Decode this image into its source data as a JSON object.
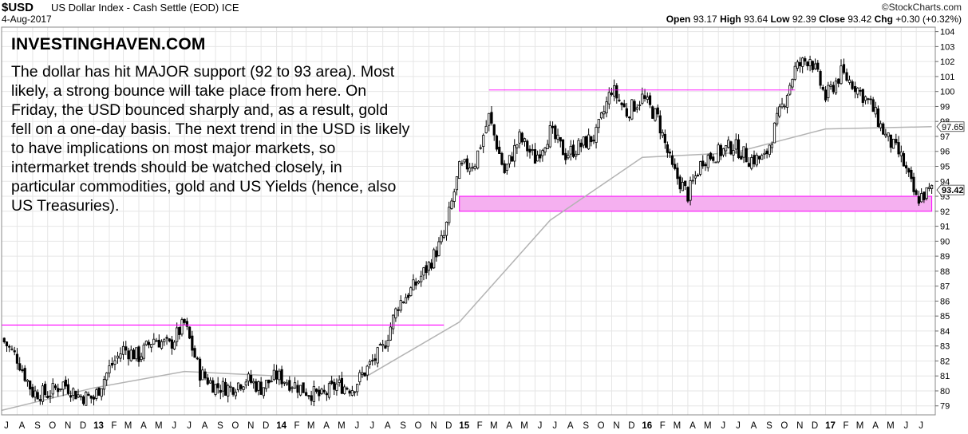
{
  "header": {
    "symbol": "$USD",
    "name": "US Dollar Index - Cash Settle (EOD)",
    "exchange": "ICE",
    "date": "4-Aug-2017",
    "copyright": "©StockCharts.com",
    "open_label": "Open",
    "open": "93.17",
    "high_label": "High",
    "high": "93.64",
    "low_label": "Low",
    "low": "92.39",
    "close_label": "Close",
    "close": "93.42",
    "chg_label": "Chg",
    "chg": "+0.30 (+0.32%)"
  },
  "annotation": {
    "brand": "INVESTINGHAVEN.COM",
    "text": "The dollar has hit MAJOR support (92 to 93 area). Most likely, a strong bounce will take place from here. On Friday, the USD bounced sharply and, as a result, gold fell on a one-day basis. The next trend in the USD is likely to have implications on most major markets, so intermarket trends should be watched closely, in particular commodities, gold and US Yields (hence, also US Treasuries)."
  },
  "colors": {
    "candles": "#000000",
    "ma": "#b3b3b3",
    "resistance": "#ff00ff",
    "support_zone": "#f5b0f0",
    "grid": "#e6e6e6"
  },
  "chart_data": {
    "type": "line",
    "title": "$USD US Dollar Index - Cash Settle (EOD)",
    "ylim": [
      78.4,
      104.3
    ],
    "y_ticks": [
      79,
      80,
      81,
      82,
      83,
      84,
      85,
      86,
      87,
      88,
      89,
      90,
      91,
      92,
      93,
      94,
      95,
      96,
      97,
      98,
      99,
      100,
      101,
      102,
      103,
      104
    ],
    "x_ticks": [
      "J",
      "A",
      "S",
      "O",
      "N",
      "D",
      "13",
      "F",
      "M",
      "A",
      "M",
      "J",
      "J",
      "A",
      "S",
      "O",
      "N",
      "D",
      "14",
      "F",
      "M",
      "A",
      "M",
      "J",
      "J",
      "A",
      "S",
      "O",
      "N",
      "D",
      "15",
      "F",
      "M",
      "A",
      "M",
      "J",
      "J",
      "A",
      "S",
      "O",
      "N",
      "D",
      "16",
      "F",
      "M",
      "A",
      "M",
      "J",
      "J",
      "A",
      "S",
      "O",
      "N",
      "D",
      "17",
      "F",
      "M",
      "A",
      "M",
      "J",
      "J"
    ],
    "x_range": [
      "2012-07",
      "2017-08"
    ],
    "series": [
      {
        "name": "Close",
        "x": [
          "2012-07",
          "2012-08",
          "2012-09",
          "2012-10",
          "2012-11",
          "2012-12",
          "2013-01",
          "2013-02",
          "2013-03",
          "2013-04",
          "2013-05",
          "2013-06",
          "2013-07",
          "2013-08",
          "2013-09",
          "2013-10",
          "2013-11",
          "2013-12",
          "2014-01",
          "2014-02",
          "2014-03",
          "2014-04",
          "2014-05",
          "2014-06",
          "2014-07",
          "2014-08",
          "2014-09",
          "2014-10",
          "2014-11",
          "2014-12",
          "2015-01",
          "2015-02",
          "2015-03",
          "2015-04",
          "2015-05",
          "2015-06",
          "2015-07",
          "2015-08",
          "2015-09",
          "2015-10",
          "2015-11",
          "2015-12",
          "2016-01",
          "2016-02",
          "2016-03",
          "2016-04",
          "2016-05",
          "2016-06",
          "2016-07",
          "2016-08",
          "2016-09",
          "2016-10",
          "2016-11",
          "2016-12",
          "2017-01",
          "2017-02",
          "2017-03",
          "2017-04",
          "2017-05",
          "2017-06",
          "2017-07",
          "2017-08"
        ],
        "values": [
          83.5,
          82.2,
          79.9,
          79.8,
          80.5,
          79.7,
          79.5,
          81.5,
          82.8,
          82.3,
          83.5,
          83.0,
          84.5,
          81.2,
          80.3,
          80.2,
          80.8,
          80.2,
          81.0,
          80.5,
          80.0,
          79.6,
          80.4,
          80.2,
          81.5,
          82.8,
          85.8,
          86.9,
          88.4,
          90.3,
          94.8,
          95.3,
          98.3,
          94.6,
          96.9,
          95.5,
          97.3,
          95.8,
          96.4,
          97.1,
          100.2,
          98.6,
          99.6,
          98.2,
          94.8,
          93.1,
          95.5,
          95.9,
          96.4,
          95.5,
          95.5,
          98.5,
          101.5,
          102.3,
          99.6,
          101.2,
          100.4,
          99.1,
          97.0,
          95.6,
          92.8,
          93.42
        ]
      },
      {
        "name": "200-day MA",
        "x": [
          "2012-07",
          "2013-01",
          "2013-07",
          "2014-01",
          "2014-07",
          "2015-01",
          "2015-07",
          "2016-01",
          "2016-07",
          "2017-01",
          "2017-08"
        ],
        "values": [
          78.7,
          80.2,
          81.3,
          81.0,
          81.0,
          84.6,
          91.4,
          95.6,
          95.9,
          97.5,
          97.65
        ]
      }
    ],
    "ma_last_label": "97.65",
    "last_price_label": "93.42",
    "annotations": [
      {
        "type": "hline",
        "value": 84.4,
        "from": "2012-07",
        "to": "2014-12"
      },
      {
        "type": "hline",
        "value": 100.1,
        "from": "2015-03",
        "to": "2016-11"
      },
      {
        "type": "band",
        "from_value": 92.0,
        "to_value": 93.0,
        "from": "2015-01",
        "to": "2017-08"
      }
    ]
  }
}
